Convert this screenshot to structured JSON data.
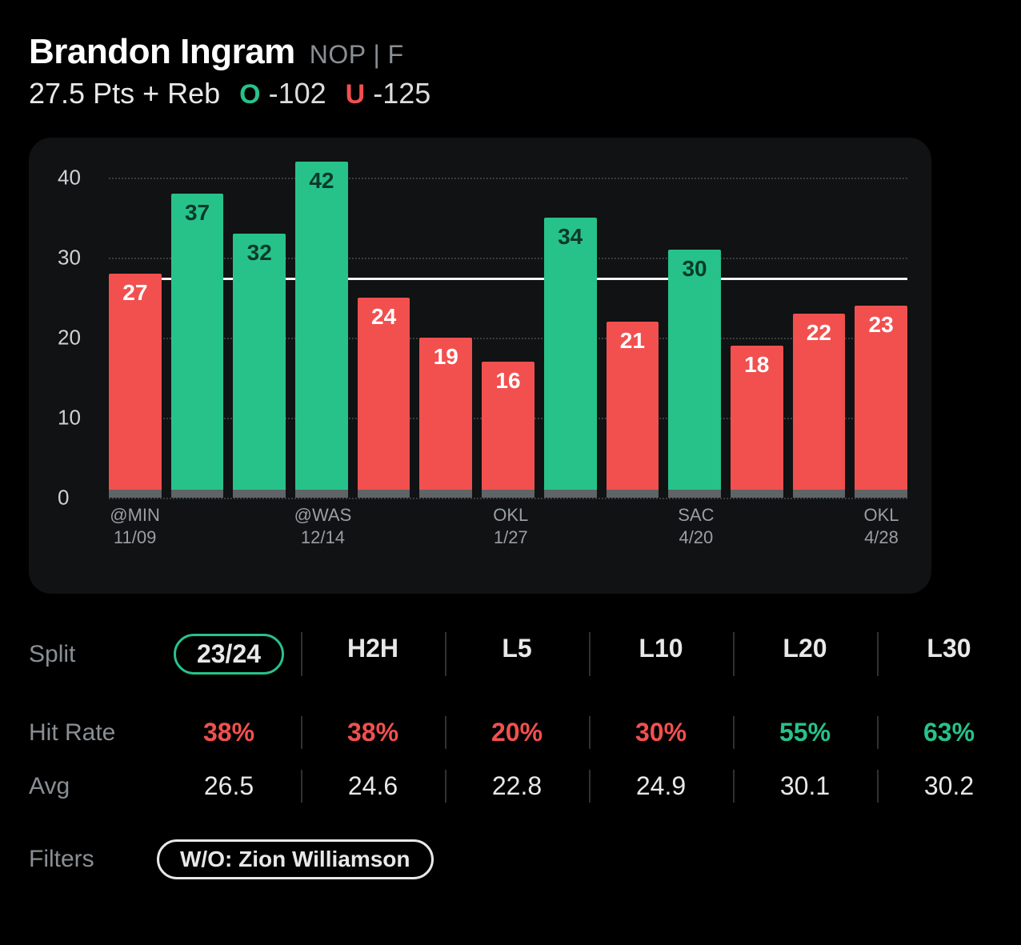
{
  "colors": {
    "background": "#000000",
    "card_bg": "#101213",
    "text_primary": "#ffffff",
    "text_muted": "#8a8f94",
    "grid_dot": "#3a3d3f",
    "bar_base": "#5f6466",
    "over": "#27c28a",
    "under": "#f1504f",
    "threshold": "#f5f5f5",
    "divider": "#2e3133"
  },
  "header": {
    "player_name": "Brandon Ingram",
    "team_pos": "NOP | F",
    "prop_line": "27.5 Pts + Reb",
    "over_letter": "O",
    "over_odds": "-102",
    "under_letter": "U",
    "under_odds": "-125"
  },
  "chart": {
    "type": "bar",
    "y_axis": {
      "min": 0,
      "max": 42,
      "ticks": [
        0,
        10,
        20,
        30,
        40
      ]
    },
    "threshold": 27.5,
    "over_color": "#27c28a",
    "under_color": "#f1504f",
    "over_label_color": "#0b3a2a",
    "under_label_color": "#ffffff",
    "bars": [
      {
        "value": 27,
        "over": false,
        "opponent": "@MIN",
        "date": "11/09"
      },
      {
        "value": 37,
        "over": true,
        "opponent": "",
        "date": ""
      },
      {
        "value": 32,
        "over": true,
        "opponent": "",
        "date": ""
      },
      {
        "value": 42,
        "over": true,
        "opponent": "@WAS",
        "date": "12/14"
      },
      {
        "value": 24,
        "over": false,
        "opponent": "",
        "date": ""
      },
      {
        "value": 19,
        "over": false,
        "opponent": "",
        "date": ""
      },
      {
        "value": 16,
        "over": false,
        "opponent": "OKL",
        "date": "1/27"
      },
      {
        "value": 34,
        "over": true,
        "opponent": "",
        "date": ""
      },
      {
        "value": 21,
        "over": false,
        "opponent": "",
        "date": ""
      },
      {
        "value": 30,
        "over": true,
        "opponent": "SAC",
        "date": "4/20"
      },
      {
        "value": 18,
        "over": false,
        "opponent": "",
        "date": ""
      },
      {
        "value": 22,
        "over": false,
        "opponent": "",
        "date": ""
      },
      {
        "value": 23,
        "over": false,
        "opponent": "OKL",
        "date": "4/28"
      }
    ]
  },
  "splits": {
    "labels": {
      "split": "Split",
      "hit_rate": "Hit Rate",
      "avg": "Avg",
      "filters": "Filters"
    },
    "columns": [
      {
        "label": "23/24",
        "hit_rate": "38%",
        "hit_good": false,
        "avg": "26.5",
        "selected": true
      },
      {
        "label": "H2H",
        "hit_rate": "38%",
        "hit_good": false,
        "avg": "24.6",
        "selected": false
      },
      {
        "label": "L5",
        "hit_rate": "20%",
        "hit_good": false,
        "avg": "22.8",
        "selected": false
      },
      {
        "label": "L10",
        "hit_rate": "30%",
        "hit_good": false,
        "avg": "24.9",
        "selected": false
      },
      {
        "label": "L20",
        "hit_rate": "55%",
        "hit_good": true,
        "avg": "30.1",
        "selected": false
      },
      {
        "label": "L30",
        "hit_rate": "63%",
        "hit_good": true,
        "avg": "30.2",
        "selected": false
      }
    ]
  },
  "filters": {
    "chip": "W/O: Zion Williamson"
  }
}
